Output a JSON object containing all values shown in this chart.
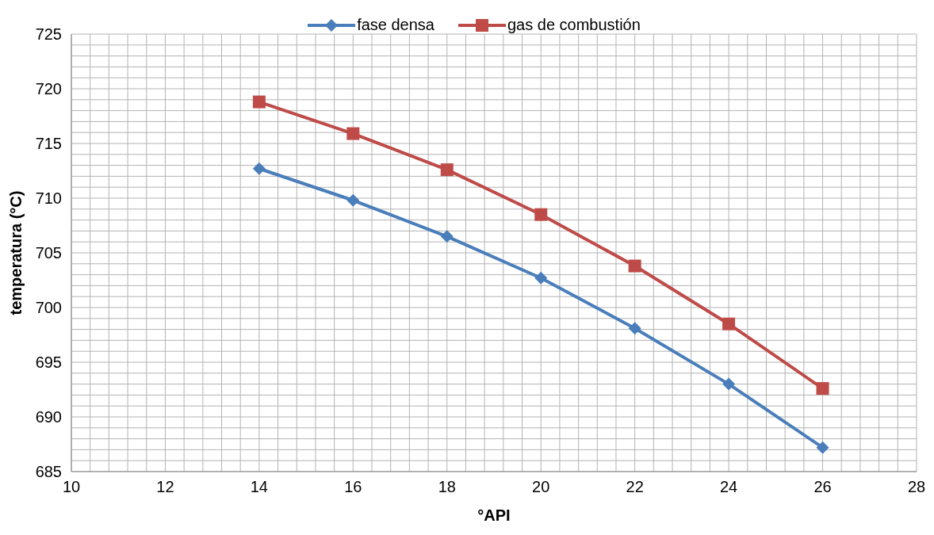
{
  "chart_data": {
    "type": "line",
    "xlabel": "°API",
    "ylabel": "temperatura (°C)",
    "x": [
      14,
      16,
      18,
      20,
      22,
      24,
      26
    ],
    "series": [
      {
        "name": "fase densa",
        "color": "#4a7ebb",
        "marker": "diamond",
        "values": [
          712.7,
          709.8,
          706.5,
          702.7,
          698.1,
          693.0,
          687.2
        ]
      },
      {
        "name": "gas de combustión",
        "color": "#be4b48",
        "marker": "square",
        "values": [
          718.8,
          715.9,
          712.6,
          708.5,
          703.8,
          698.5,
          692.6
        ]
      }
    ],
    "xlim": [
      10,
      28
    ],
    "xticks": [
      10,
      {
        "value": 10.4,
        "label": null
      },
      {
        "value": 10.8,
        "label": null
      },
      {
        "value": 11.2,
        "label": null
      },
      {
        "value": 11.6,
        "label": null
      },
      12,
      {
        "value": 12.4,
        "label": null
      },
      {
        "value": 12.8,
        "label": null
      },
      {
        "value": 13.2,
        "label": null
      },
      {
        "value": 13.6,
        "label": null
      },
      14,
      {
        "value": 14.4,
        "label": null
      },
      {
        "value": 14.8,
        "label": null
      },
      {
        "value": 15.2,
        "label": null
      },
      {
        "value": 15.6,
        "label": null
      },
      16,
      {
        "value": 16.4,
        "label": null
      },
      {
        "value": 16.8,
        "label": null
      },
      {
        "value": 17.2,
        "label": null
      },
      {
        "value": 17.6,
        "label": null
      },
      18,
      {
        "value": 18.4,
        "label": null
      },
      {
        "value": 18.8,
        "label": null
      },
      {
        "value": 19.2,
        "label": null
      },
      {
        "value": 19.6,
        "label": null
      },
      20,
      {
        "value": 20.4,
        "label": null
      },
      {
        "value": 20.8,
        "label": null
      },
      {
        "value": 21.2,
        "label": null
      },
      {
        "value": 21.6,
        "label": null
      },
      22,
      {
        "value": 22.4,
        "label": null
      },
      {
        "value": 22.8,
        "label": null
      },
      {
        "value": 23.2,
        "label": null
      },
      {
        "value": 23.6,
        "label": null
      },
      24,
      {
        "value": 24.4,
        "label": null
      },
      {
        "value": 24.8,
        "label": null
      },
      {
        "value": 25.2,
        "label": null
      },
      {
        "value": 25.6,
        "label": null
      },
      26,
      {
        "value": 26.4,
        "label": null
      },
      {
        "value": 26.8,
        "label": null
      },
      {
        "value": 27.2,
        "label": null
      },
      {
        "value": 27.6,
        "label": null
      },
      28
    ],
    "ylim": [
      685,
      725
    ],
    "yticks": [
      685,
      {
        "value": 686,
        "label": null
      },
      {
        "value": 687,
        "label": null
      },
      {
        "value": 688,
        "label": null
      },
      {
        "value": 689,
        "label": null
      },
      690,
      {
        "value": 691,
        "label": null
      },
      {
        "value": 692,
        "label": null
      },
      {
        "value": 693,
        "label": null
      },
      {
        "value": 694,
        "label": null
      },
      695,
      {
        "value": 696,
        "label": null
      },
      {
        "value": 697,
        "label": null
      },
      {
        "value": 698,
        "label": null
      },
      {
        "value": 699,
        "label": null
      },
      700,
      {
        "value": 701,
        "label": null
      },
      {
        "value": 702,
        "label": null
      },
      {
        "value": 703,
        "label": null
      },
      {
        "value": 704,
        "label": null
      },
      705,
      {
        "value": 706,
        "label": null
      },
      {
        "value": 707,
        "label": null
      },
      {
        "value": 708,
        "label": null
      },
      {
        "value": 709,
        "label": null
      },
      710,
      {
        "value": 711,
        "label": null
      },
      {
        "value": 712,
        "label": null
      },
      {
        "value": 713,
        "label": null
      },
      {
        "value": 714,
        "label": null
      },
      715,
      {
        "value": 716,
        "label": null
      },
      {
        "value": 717,
        "label": null
      },
      {
        "value": 718,
        "label": null
      },
      {
        "value": 719,
        "label": null
      },
      720,
      {
        "value": 721,
        "label": null
      },
      {
        "value": 722,
        "label": null
      },
      {
        "value": 723,
        "label": null
      },
      {
        "value": 724,
        "label": null
      },
      725
    ],
    "grid": true,
    "legend": "top",
    "line_style": "solid"
  }
}
